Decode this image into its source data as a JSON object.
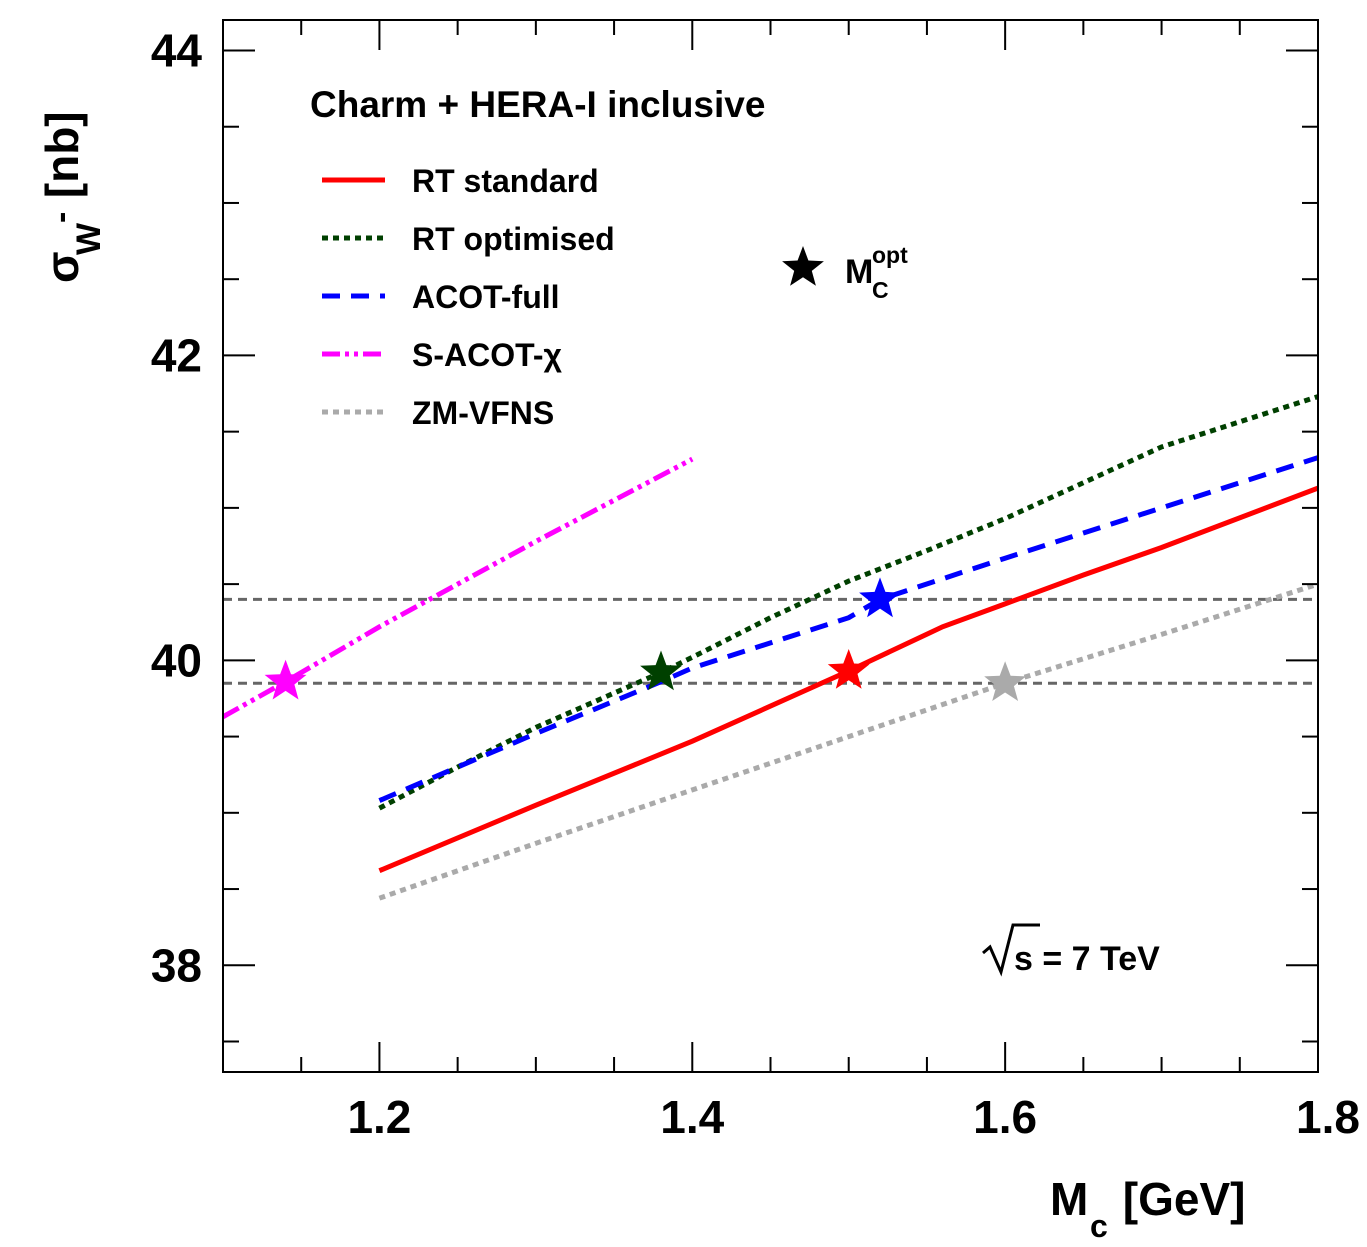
{
  "chart_data": {
    "type": "line",
    "header": "Charm + HERA-I inclusive",
    "energy_prefix": "s = 7 TeV",
    "xlabel": {
      "main": "M",
      "sub": "c",
      "unit": " [GeV]"
    },
    "ylabel": {
      "main": "σ",
      "sub": "W",
      "sup": "-",
      "unit": " [nb]"
    },
    "xlim": [
      1.1,
      1.8
    ],
    "ylim": [
      37.3,
      44.2
    ],
    "x_ticks": [
      {
        "v": 1.2,
        "label": "1.2"
      },
      {
        "v": 1.4,
        "label": "1.4"
      },
      {
        "v": 1.6,
        "label": "1.6"
      },
      {
        "v": 1.8,
        "label": "1.8"
      }
    ],
    "y_ticks": [
      {
        "v": 38,
        "label": "38"
      },
      {
        "v": 40,
        "label": "40"
      },
      {
        "v": 42,
        "label": "42"
      },
      {
        "v": 44,
        "label": "44"
      }
    ],
    "optimum_marker_label": {
      "main": "M",
      "sub": "C",
      "sup": "opt"
    },
    "reference_lines": [
      40.4,
      39.85
    ],
    "series": [
      {
        "name": "RT standard",
        "color": "#ff0000",
        "dash": "solid",
        "x": [
          1.2,
          1.3,
          1.4,
          1.5,
          1.56,
          1.6,
          1.65,
          1.7,
          1.8
        ],
        "y": [
          38.62,
          39.05,
          39.47,
          39.93,
          40.22,
          40.37,
          40.56,
          40.74,
          41.13
        ],
        "star": [
          1.5,
          39.93
        ]
      },
      {
        "name": "RT optimised",
        "color": "#004000",
        "dash": "dotted",
        "x": [
          1.2,
          1.25,
          1.3,
          1.38,
          1.4,
          1.45,
          1.5,
          1.55,
          1.6,
          1.7,
          1.8
        ],
        "y": [
          39.03,
          39.3,
          39.56,
          39.92,
          40.02,
          40.28,
          40.52,
          40.72,
          40.93,
          41.4,
          41.73
        ],
        "star": [
          1.38,
          39.92
        ]
      },
      {
        "name": "ACOT-full",
        "color": "#0000ff",
        "dash": "dashed",
        "x": [
          1.2,
          1.3,
          1.38,
          1.4,
          1.5,
          1.52,
          1.6,
          1.7,
          1.8
        ],
        "y": [
          39.08,
          39.52,
          39.86,
          39.95,
          40.28,
          40.4,
          40.67,
          41.0,
          41.33
        ],
        "star": [
          1.52,
          40.4
        ]
      },
      {
        "name": "S-ACOT-χ",
        "color": "#ff00ff",
        "dash": "dashdot",
        "x": [
          1.1,
          1.14,
          1.2,
          1.3,
          1.4
        ],
        "y": [
          39.63,
          39.86,
          40.22,
          40.78,
          41.32
        ],
        "star": [
          1.14,
          39.86
        ]
      },
      {
        "name": "ZM-VFNS",
        "color": "#aaaaaa",
        "dash": "dotted",
        "x": [
          1.2,
          1.3,
          1.4,
          1.5,
          1.6,
          1.7,
          1.8
        ],
        "y": [
          38.44,
          38.8,
          39.15,
          39.5,
          39.85,
          40.17,
          40.5
        ],
        "star": [
          1.6,
          39.85
        ]
      }
    ],
    "legend_placement": "top-left",
    "grid": false
  }
}
